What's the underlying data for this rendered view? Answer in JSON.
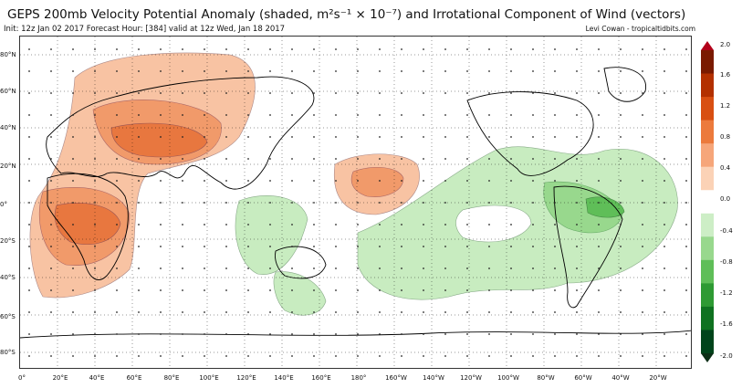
{
  "header": {
    "title": "GEPS 200mb Velocity Potential Anomaly (shaded, m²s⁻¹ × 10⁻⁷) and Irrotational Component of Wind (vectors)",
    "subtitle": "Init: 12z Jan 02 2017 Forecast Hour: [384] valid at 12z Wed, Jan 18 2017",
    "credit": "Levi Cowan - tropicaltidbits.com"
  },
  "map": {
    "lat_labels": [
      "80°N",
      "60°N",
      "40°N",
      "20°N",
      "0°",
      "20°S",
      "40°S",
      "60°S",
      "80°S"
    ],
    "lon_labels": [
      "0°",
      "20°E",
      "40°E",
      "60°E",
      "80°E",
      "100°E",
      "120°E",
      "140°E",
      "160°E",
      "180°",
      "160°W",
      "140°W",
      "120°W",
      "100°W",
      "80°W",
      "60°W",
      "40°W",
      "20°W"
    ],
    "positive_color": "#f4a582",
    "positive_strong_color": "#e8703a",
    "negative_color": "#b3e2a8",
    "negative_strong_color": "#5cbf58"
  },
  "colorbar": {
    "ticks": [
      "2.0",
      "1.6",
      "1.2",
      "0.8",
      "0.4",
      "0.0",
      "-0.4",
      "-0.8",
      "-1.2",
      "-1.6",
      "-2.0"
    ],
    "colors": [
      "#7a1a00",
      "#b33000",
      "#d84f12",
      "#ec7a3c",
      "#f6a67a",
      "#fbd2b6",
      "#ffffff",
      "#cdeec6",
      "#98d88d",
      "#5fbe58",
      "#2e9a33",
      "#0f7220",
      "#00441b"
    ]
  }
}
